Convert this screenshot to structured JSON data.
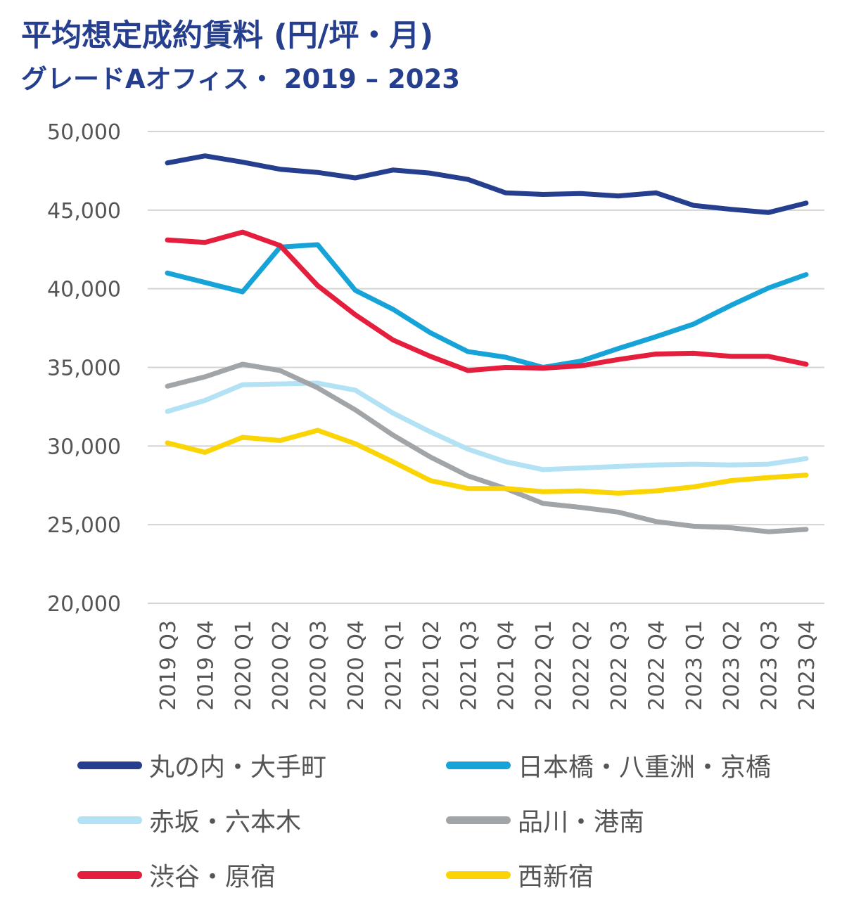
{
  "chart_data": {
    "type": "line",
    "title": "平均想定成約賃料 (円/坪・月)",
    "subtitle": "グレードAオフィス・ 2019 – 2023",
    "xlabel": "",
    "ylabel": "",
    "ylim": [
      20000,
      50000
    ],
    "yticks": [
      20000,
      25000,
      30000,
      35000,
      40000,
      45000,
      50000
    ],
    "ytick_labels": [
      "20,000",
      "25,000",
      "30,000",
      "35,000",
      "40,000",
      "45,000",
      "50,000"
    ],
    "grid": true,
    "legend_position": "bottom",
    "categories": [
      "2019 Q3",
      "2019 Q4",
      "2020 Q1",
      "2020 Q2",
      "2020 Q3",
      "2020 Q4",
      "2021 Q1",
      "2021 Q2",
      "2021 Q3",
      "2021 Q4",
      "2022 Q1",
      "2022 Q2",
      "2022 Q3",
      "2022 Q4",
      "2023 Q1",
      "2023 Q2",
      "2023 Q3",
      "2023 Q4"
    ],
    "series": [
      {
        "name": "丸の内・大手町",
        "color": "#253f8e",
        "values": [
          48000,
          48450,
          48050,
          47600,
          47400,
          47050,
          47550,
          47350,
          46950,
          46100,
          46000,
          46050,
          45900,
          46100,
          45300,
          45050,
          44850,
          45450
        ]
      },
      {
        "name": "日本橋・八重洲・京橋",
        "color": "#16a3d8",
        "values": [
          41000,
          40400,
          39800,
          42650,
          42800,
          39900,
          38700,
          37200,
          36000,
          35650,
          35000,
          35400,
          36200,
          36950,
          37750,
          38950,
          40050,
          40900
        ]
      },
      {
        "name": "赤坂・六本木",
        "color": "#b3e2f4",
        "values": [
          32200,
          32900,
          33900,
          33950,
          34000,
          33550,
          32100,
          30900,
          29800,
          29000,
          28500,
          28600,
          28700,
          28800,
          28850,
          28800,
          28850,
          29200
        ]
      },
      {
        "name": "品川・港南",
        "color": "#a2a5a8",
        "values": [
          33800,
          34400,
          35200,
          34800,
          33700,
          32300,
          30700,
          29300,
          28100,
          27300,
          26350,
          26100,
          25800,
          25200,
          24900,
          24800,
          24550,
          24700
        ]
      },
      {
        "name": "渋谷・原宿",
        "color": "#e41e3c",
        "values": [
          43100,
          42950,
          43600,
          42750,
          40200,
          38350,
          36750,
          35700,
          34800,
          35000,
          34950,
          35100,
          35500,
          35850,
          35900,
          35700,
          35700,
          35200
        ]
      },
      {
        "name": "西新宿",
        "color": "#fbd404",
        "values": [
          30200,
          29600,
          30550,
          30350,
          31000,
          30150,
          29000,
          27800,
          27300,
          27300,
          27100,
          27150,
          27000,
          27150,
          27400,
          27800,
          28000,
          28150
        ]
      }
    ]
  }
}
